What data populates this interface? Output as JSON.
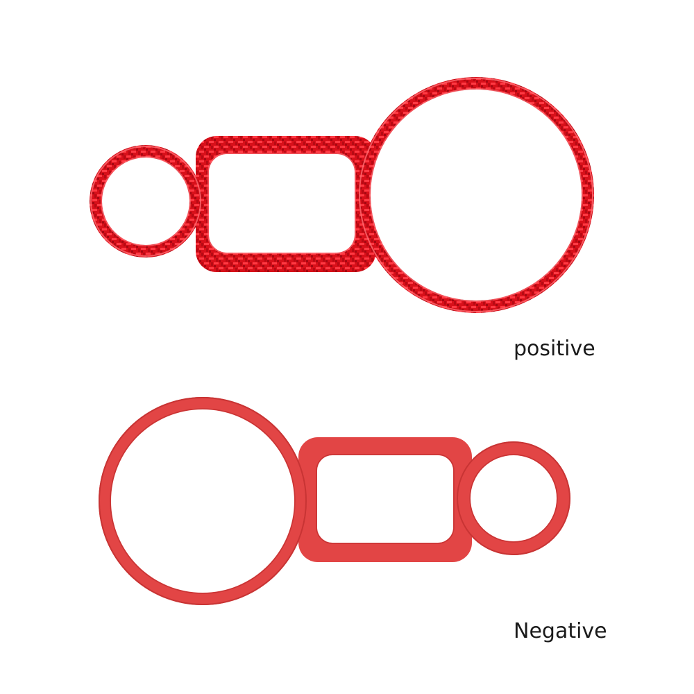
{
  "captions": {
    "front": "positive",
    "back": "Negative"
  },
  "colors": {
    "background": "#ffffff",
    "carbon_red": "#d8101a",
    "carbon_dark": "#9e0710",
    "carbon_light": "#f04048",
    "backing_red": "#e24545",
    "backing_edge": "#c83434",
    "caption_text": "#1a1a1a"
  }
}
